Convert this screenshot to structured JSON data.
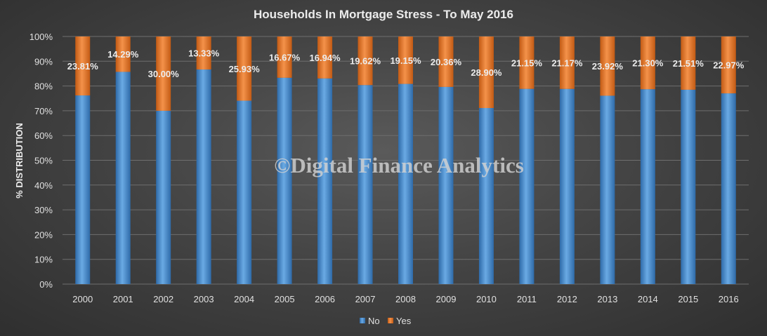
{
  "chart_data": {
    "type": "bar",
    "stacked": true,
    "percent_stacked": true,
    "title": "Households In Mortgage Stress - To May 2016",
    "ylabel": "% DISTRIBUTION",
    "xlabel": "",
    "ylim": [
      0,
      100
    ],
    "yticks": [
      "0%",
      "10%",
      "20%",
      "30%",
      "40%",
      "50%",
      "60%",
      "70%",
      "80%",
      "90%",
      "100%"
    ],
    "categories": [
      "2000",
      "2001",
      "2002",
      "2003",
      "2004",
      "2005",
      "2006",
      "2007",
      "2008",
      "2009",
      "2010",
      "2011",
      "2012",
      "2013",
      "2014",
      "2015",
      "2016"
    ],
    "series": [
      {
        "name": "No",
        "color": "#5b9bd5",
        "values": [
          76.19,
          85.71,
          70.0,
          86.67,
          74.07,
          83.33,
          83.06,
          80.38,
          80.85,
          79.64,
          71.1,
          78.85,
          78.83,
          76.08,
          78.7,
          78.49,
          77.03
        ]
      },
      {
        "name": "Yes",
        "color": "#ed7d31",
        "values": [
          23.81,
          14.29,
          30.0,
          13.33,
          25.93,
          16.67,
          16.94,
          19.62,
          19.15,
          20.36,
          28.9,
          21.15,
          21.17,
          23.92,
          21.3,
          21.51,
          22.97
        ],
        "data_labels": [
          "23.81%",
          "14.29%",
          "30.00%",
          "13.33%",
          "25.93%",
          "16.67%",
          "16.94%",
          "19.62%",
          "19.15%",
          "20.36%",
          "28.90%",
          "21.15%",
          "21.17%",
          "23.92%",
          "21.30%",
          "21.51%",
          "22.97%"
        ]
      }
    ],
    "legend": {
      "position": "bottom",
      "entries": [
        "No",
        "Yes"
      ]
    },
    "grid": true,
    "watermark": "©Digital Finance Analytics"
  }
}
